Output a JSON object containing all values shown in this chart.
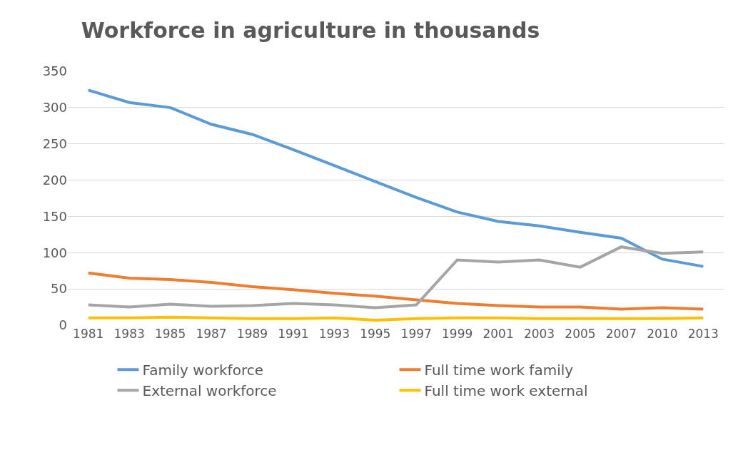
{
  "chart_data": {
    "type": "line",
    "title": "Workforce in agriculture in thousands",
    "categories": [
      "1981",
      "1983",
      "1985",
      "1987",
      "1989",
      "1991",
      "1993",
      "1995",
      "1997",
      "1999",
      "2001",
      "2003",
      "2005",
      "2007",
      "2010",
      "2013"
    ],
    "series": [
      {
        "name": "Family workforce",
        "color": "#5b9bd5",
        "values": [
          324,
          307,
          300,
          277,
          263,
          242,
          220,
          198,
          176,
          156,
          143,
          137,
          128,
          120,
          91,
          81
        ]
      },
      {
        "name": "Full time work family",
        "color": "#ed7d31",
        "values": [
          72,
          65,
          63,
          59,
          53,
          49,
          44,
          40,
          35,
          30,
          27,
          25,
          25,
          22,
          24,
          22
        ]
      },
      {
        "name": "External workforce",
        "color": "#a5a5a5",
        "values": [
          28,
          25,
          29,
          26,
          27,
          30,
          28,
          24,
          28,
          90,
          87,
          90,
          80,
          108,
          99,
          101
        ]
      },
      {
        "name": "Full time work external",
        "color": "#ffc000",
        "values": [
          10,
          10,
          11,
          10,
          9,
          9,
          10,
          7,
          9,
          10,
          10,
          9,
          9,
          9,
          9,
          10
        ]
      }
    ],
    "ylim": [
      0,
      350
    ],
    "yticks": [
      0,
      50,
      100,
      150,
      200,
      250,
      300,
      350
    ],
    "grid": "y",
    "legend": "bottom",
    "marker": "none",
    "line_style": "solid"
  }
}
